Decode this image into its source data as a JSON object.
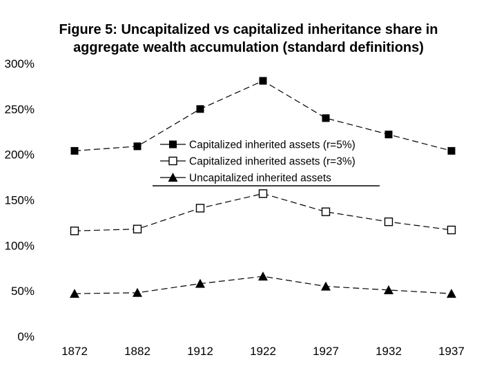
{
  "figure": {
    "title_line1": "Figure 5: Uncapitalized vs capitalized inheritance share in",
    "title_line2": "aggregate wealth accumulation (standard definitions)"
  },
  "chart_data": {
    "type": "line",
    "title": "Figure 5: Uncapitalized vs capitalized inheritance share in aggregate wealth accumulation (standard definitions)",
    "categories": [
      "1872",
      "1882",
      "1912",
      "1922",
      "1927",
      "1932",
      "1937"
    ],
    "series": [
      {
        "name": "Capitalized inherited assets (r=5%)",
        "marker": "filled-square",
        "values": [
          204,
          209,
          250,
          281,
          240,
          222,
          204
        ]
      },
      {
        "name": "Capitalized inherited assets (r=3%)",
        "marker": "open-square",
        "values": [
          116,
          118,
          141,
          157,
          137,
          126,
          117
        ]
      },
      {
        "name": "Uncapitalized inherited assets",
        "marker": "filled-triangle",
        "values": [
          47,
          48,
          58,
          66,
          55,
          51,
          47
        ]
      }
    ],
    "y_tick_labels": [
      "300%",
      "250%",
      "200%",
      "150%",
      "100%",
      "50%",
      "0%"
    ],
    "y_tick_values": [
      300,
      250,
      200,
      150,
      100,
      50,
      0
    ],
    "ylim": [
      0,
      300
    ],
    "xlabel": "",
    "ylabel": "",
    "grid": false,
    "line_style": "dashed",
    "legend_position": "center-inside",
    "colors": {
      "foreground": "#000000",
      "background": "#ffffff"
    }
  }
}
